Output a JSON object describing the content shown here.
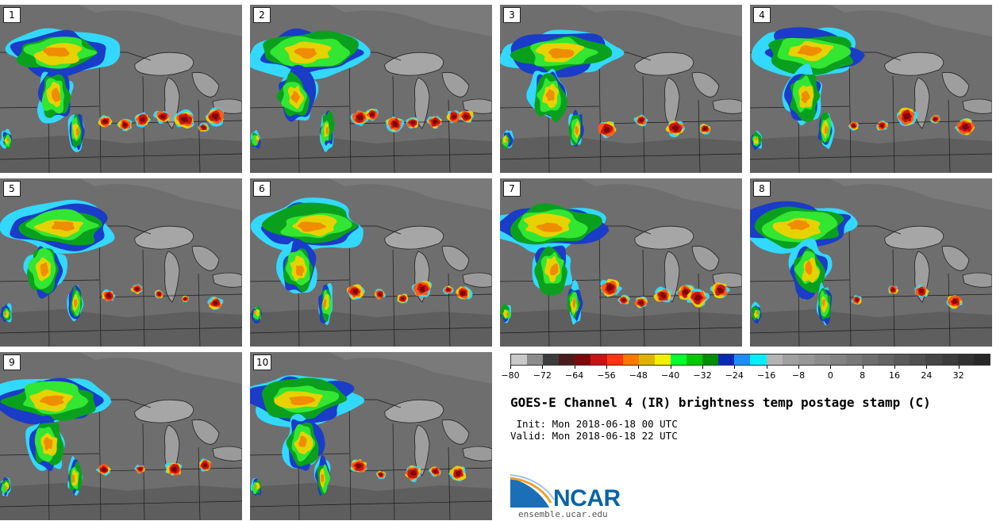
{
  "panels": [
    {
      "label": "1"
    },
    {
      "label": "2"
    },
    {
      "label": "3"
    },
    {
      "label": "4"
    },
    {
      "label": "5"
    },
    {
      "label": "6"
    },
    {
      "label": "7"
    },
    {
      "label": "8"
    },
    {
      "label": "9"
    },
    {
      "label": "10"
    }
  ],
  "colorbar": {
    "colors": [
      "#c8c8c8",
      "#8c8c8c",
      "#3c3c3c",
      "#4a1c1c",
      "#7c0a0a",
      "#c81414",
      "#ff3214",
      "#ff7800",
      "#dcb400",
      "#f0f000",
      "#00ff32",
      "#00c800",
      "#008c00",
      "#0a28b4",
      "#1e8cff",
      "#00f0ff",
      "#b4b4b4",
      "#a0a0a0",
      "#969696",
      "#8c8c8c",
      "#828282",
      "#787878",
      "#6e6e6e",
      "#646464",
      "#5a5a5a",
      "#505050",
      "#464646",
      "#3c3c3c",
      "#323232",
      "#282828"
    ],
    "tick_labels": [
      "−80",
      "−72",
      "−64",
      "−56",
      "−48",
      "−40",
      "−32",
      "−24",
      "−16",
      "−8",
      "0",
      "8",
      "16",
      "24",
      "32"
    ]
  },
  "title": "GOES-E Channel 4 (IR) brightness temp postage stamp (C)",
  "init": " Init: Mon 2018-06-18 00 UTC",
  "valid": "Valid: Mon 2018-06-18 22 UTC",
  "logo": {
    "name": "NCAR",
    "url": "ensemble.ucar.edu",
    "icon": "ncar-swoosh-icon"
  }
}
